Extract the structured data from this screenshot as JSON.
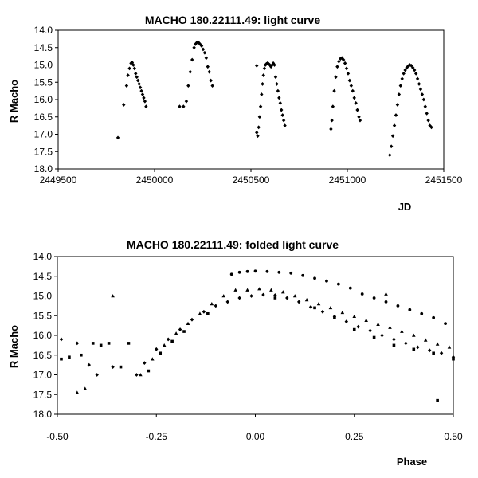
{
  "chart_data": [
    {
      "type": "scatter",
      "title": "MACHO 180.22111.49: light curve",
      "xlabel": "JD",
      "ylabel": "R Macho",
      "xlim": [
        2449500,
        2451500
      ],
      "ylim": [
        14.0,
        18.0
      ],
      "y_inverted": true,
      "grid": false,
      "legend": "none",
      "xticks": [
        "2449500",
        "2450000",
        "2450500",
        "2451000",
        "2451500"
      ],
      "yticks": [
        "14.0",
        "14.5",
        "15.0",
        "15.5",
        "16.0",
        "16.5",
        "17.0",
        "17.5",
        "18.0"
      ],
      "color": "#000000",
      "points": [
        [
          2449810,
          17.1
        ],
        [
          2449840,
          16.15
        ],
        [
          2449855,
          15.6
        ],
        [
          2449862,
          15.3
        ],
        [
          2449870,
          15.1
        ],
        [
          2449878,
          14.95
        ],
        [
          2449884,
          14.93
        ],
        [
          2449890,
          15.0
        ],
        [
          2449896,
          15.1
        ],
        [
          2449902,
          15.25
        ],
        [
          2449908,
          15.35
        ],
        [
          2449914,
          15.45
        ],
        [
          2449920,
          15.55
        ],
        [
          2449926,
          15.65
        ],
        [
          2449932,
          15.75
        ],
        [
          2449938,
          15.85
        ],
        [
          2449944,
          15.95
        ],
        [
          2449950,
          16.05
        ],
        [
          2449956,
          16.2
        ],
        [
          2450130,
          16.2
        ],
        [
          2450150,
          16.2
        ],
        [
          2450165,
          16.05
        ],
        [
          2450175,
          15.6
        ],
        [
          2450185,
          15.2
        ],
        [
          2450195,
          14.85
        ],
        [
          2450205,
          14.5
        ],
        [
          2450212,
          14.4
        ],
        [
          2450220,
          14.35
        ],
        [
          2450228,
          14.35
        ],
        [
          2450236,
          14.4
        ],
        [
          2450244,
          14.45
        ],
        [
          2450252,
          14.55
        ],
        [
          2450260,
          14.65
        ],
        [
          2450268,
          14.8
        ],
        [
          2450276,
          15.05
        ],
        [
          2450284,
          15.2
        ],
        [
          2450292,
          15.45
        ],
        [
          2450300,
          15.6
        ],
        [
          2450530,
          16.95
        ],
        [
          2450535,
          17.05
        ],
        [
          2450540,
          16.8
        ],
        [
          2450545,
          16.5
        ],
        [
          2450550,
          16.2
        ],
        [
          2450555,
          15.85
        ],
        [
          2450560,
          15.55
        ],
        [
          2450565,
          15.3
        ],
        [
          2450570,
          15.1
        ],
        [
          2450575,
          15.0
        ],
        [
          2450580,
          14.97
        ],
        [
          2450586,
          14.95
        ],
        [
          2450592,
          14.97
        ],
        [
          2450598,
          15.0
        ],
        [
          2450604,
          15.05
        ],
        [
          2450610,
          15.0
        ],
        [
          2450616,
          14.95
        ],
        [
          2450622,
          15.0
        ],
        [
          2450628,
          15.35
        ],
        [
          2450634,
          15.55
        ],
        [
          2450640,
          15.75
        ],
        [
          2450646,
          15.95
        ],
        [
          2450652,
          16.1
        ],
        [
          2450658,
          16.3
        ],
        [
          2450664,
          16.45
        ],
        [
          2450670,
          16.6
        ],
        [
          2450676,
          16.75
        ],
        [
          2450530,
          15.02
        ],
        [
          2450915,
          16.85
        ],
        [
          2450920,
          16.6
        ],
        [
          2450925,
          16.2
        ],
        [
          2450932,
          15.75
        ],
        [
          2450940,
          15.35
        ],
        [
          2450948,
          15.05
        ],
        [
          2450956,
          14.9
        ],
        [
          2450964,
          14.82
        ],
        [
          2450972,
          14.8
        ],
        [
          2450980,
          14.85
        ],
        [
          2450988,
          14.95
        ],
        [
          2450996,
          15.1
        ],
        [
          2451004,
          15.25
        ],
        [
          2451012,
          15.45
        ],
        [
          2451020,
          15.6
        ],
        [
          2451028,
          15.75
        ],
        [
          2451036,
          15.95
        ],
        [
          2451044,
          16.1
        ],
        [
          2451052,
          16.3
        ],
        [
          2451060,
          16.5
        ],
        [
          2451066,
          16.6
        ],
        [
          2451220,
          17.6
        ],
        [
          2451228,
          17.35
        ],
        [
          2451236,
          17.05
        ],
        [
          2451244,
          16.75
        ],
        [
          2451252,
          16.45
        ],
        [
          2451260,
          16.15
        ],
        [
          2451268,
          15.85
        ],
        [
          2451276,
          15.6
        ],
        [
          2451284,
          15.4
        ],
        [
          2451292,
          15.25
        ],
        [
          2451300,
          15.15
        ],
        [
          2451308,
          15.08
        ],
        [
          2451316,
          15.03
        ],
        [
          2451324,
          15.0
        ],
        [
          2451332,
          15.02
        ],
        [
          2451340,
          15.08
        ],
        [
          2451348,
          15.15
        ],
        [
          2451356,
          15.25
        ],
        [
          2451364,
          15.4
        ],
        [
          2451372,
          15.55
        ],
        [
          2451380,
          15.7
        ],
        [
          2451388,
          15.85
        ],
        [
          2451396,
          16.0
        ],
        [
          2451404,
          16.2
        ],
        [
          2451412,
          16.4
        ],
        [
          2451420,
          16.6
        ],
        [
          2451428,
          16.75
        ],
        [
          2451436,
          16.8
        ]
      ]
    },
    {
      "type": "scatter",
      "title": "MACHO 180.22111.49: folded light curve",
      "xlabel": "Phase",
      "ylabel": "R Macho",
      "xlim": [
        -0.5,
        0.5
      ],
      "ylim": [
        14.0,
        18.0
      ],
      "y_inverted": true,
      "grid": false,
      "legend": "none",
      "xticks": [
        "-0.50",
        "-0.25",
        "0.00",
        "0.25",
        "0.50"
      ],
      "yticks": [
        "14.0",
        "14.5",
        "15.0",
        "15.5",
        "16.0",
        "16.5",
        "17.0",
        "17.5",
        "18.0"
      ],
      "color": "#000000",
      "series": [
        {
          "marker": "diamond",
          "points": [
            [
              -0.49,
              16.1
            ],
            [
              -0.45,
              16.2
            ],
            [
              -0.42,
              16.75
            ],
            [
              -0.4,
              17.0
            ],
            [
              -0.36,
              16.8
            ],
            [
              -0.3,
              17.0
            ],
            [
              -0.28,
              16.7
            ],
            [
              -0.25,
              16.35
            ],
            [
              -0.22,
              16.1
            ],
            [
              -0.19,
              15.85
            ],
            [
              -0.16,
              15.6
            ],
            [
              -0.13,
              15.4
            ],
            [
              -0.1,
              15.25
            ],
            [
              -0.07,
              15.15
            ],
            [
              -0.04,
              15.05
            ],
            [
              -0.01,
              15.0
            ],
            [
              0.02,
              14.97
            ],
            [
              0.05,
              14.98
            ],
            [
              0.08,
              15.05
            ],
            [
              0.11,
              15.15
            ],
            [
              0.14,
              15.28
            ],
            [
              0.17,
              15.4
            ],
            [
              0.2,
              15.52
            ],
            [
              0.23,
              15.65
            ],
            [
              0.26,
              15.78
            ],
            [
              0.29,
              15.88
            ],
            [
              0.32,
              16.0
            ],
            [
              0.35,
              16.1
            ],
            [
              0.38,
              16.2
            ],
            [
              0.41,
              16.3
            ],
            [
              0.44,
              16.38
            ],
            [
              0.47,
              16.45
            ],
            [
              0.5,
              16.55
            ]
          ]
        },
        {
          "marker": "triangle",
          "points": [
            [
              -0.45,
              17.45
            ],
            [
              -0.43,
              17.35
            ],
            [
              -0.36,
              15.0
            ],
            [
              -0.29,
              17.0
            ],
            [
              -0.26,
              16.6
            ],
            [
              -0.23,
              16.25
            ],
            [
              -0.2,
              15.95
            ],
            [
              -0.17,
              15.7
            ],
            [
              -0.14,
              15.45
            ],
            [
              -0.11,
              15.2
            ],
            [
              -0.08,
              15.0
            ],
            [
              -0.05,
              14.85
            ],
            [
              -0.02,
              14.85
            ],
            [
              0.01,
              14.82
            ],
            [
              0.04,
              14.85
            ],
            [
              0.07,
              14.9
            ],
            [
              0.1,
              15.0
            ],
            [
              0.13,
              15.1
            ],
            [
              0.16,
              15.2
            ],
            [
              0.19,
              15.3
            ],
            [
              0.22,
              15.42
            ],
            [
              0.25,
              15.52
            ],
            [
              0.28,
              15.62
            ],
            [
              0.31,
              15.72
            ],
            [
              0.33,
              14.95
            ],
            [
              0.34,
              15.8
            ],
            [
              0.37,
              15.9
            ],
            [
              0.4,
              16.0
            ],
            [
              0.43,
              16.12
            ],
            [
              0.46,
              16.22
            ],
            [
              0.49,
              16.3
            ]
          ]
        },
        {
          "marker": "circle",
          "points": [
            [
              -0.06,
              14.45
            ],
            [
              -0.04,
              14.4
            ],
            [
              -0.02,
              14.38
            ],
            [
              0.0,
              14.37
            ],
            [
              0.03,
              14.38
            ],
            [
              0.06,
              14.4
            ],
            [
              0.09,
              14.42
            ],
            [
              0.12,
              14.48
            ],
            [
              0.15,
              14.55
            ],
            [
              0.18,
              14.62
            ],
            [
              0.21,
              14.7
            ],
            [
              0.24,
              14.8
            ],
            [
              0.27,
              14.95
            ],
            [
              0.3,
              15.05
            ],
            [
              0.33,
              15.15
            ],
            [
              0.36,
              15.25
            ],
            [
              0.39,
              15.35
            ],
            [
              0.42,
              15.45
            ],
            [
              0.45,
              15.55
            ],
            [
              0.48,
              15.7
            ]
          ]
        },
        {
          "marker": "square",
          "points": [
            [
              -0.49,
              16.6
            ],
            [
              -0.47,
              16.55
            ],
            [
              -0.44,
              16.5
            ],
            [
              -0.41,
              16.2
            ],
            [
              -0.39,
              16.25
            ],
            [
              -0.37,
              16.2
            ],
            [
              -0.34,
              16.8
            ],
            [
              -0.32,
              16.2
            ],
            [
              -0.27,
              16.9
            ],
            [
              -0.24,
              16.45
            ],
            [
              -0.21,
              16.15
            ],
            [
              -0.18,
              15.9
            ],
            [
              -0.12,
              15.45
            ],
            [
              0.05,
              15.05
            ],
            [
              0.15,
              15.3
            ],
            [
              0.2,
              15.55
            ],
            [
              0.25,
              15.85
            ],
            [
              0.3,
              16.05
            ],
            [
              0.35,
              16.25
            ],
            [
              0.4,
              16.35
            ],
            [
              0.45,
              16.45
            ],
            [
              0.5,
              16.6
            ],
            [
              0.46,
              17.65
            ]
          ]
        }
      ]
    }
  ]
}
